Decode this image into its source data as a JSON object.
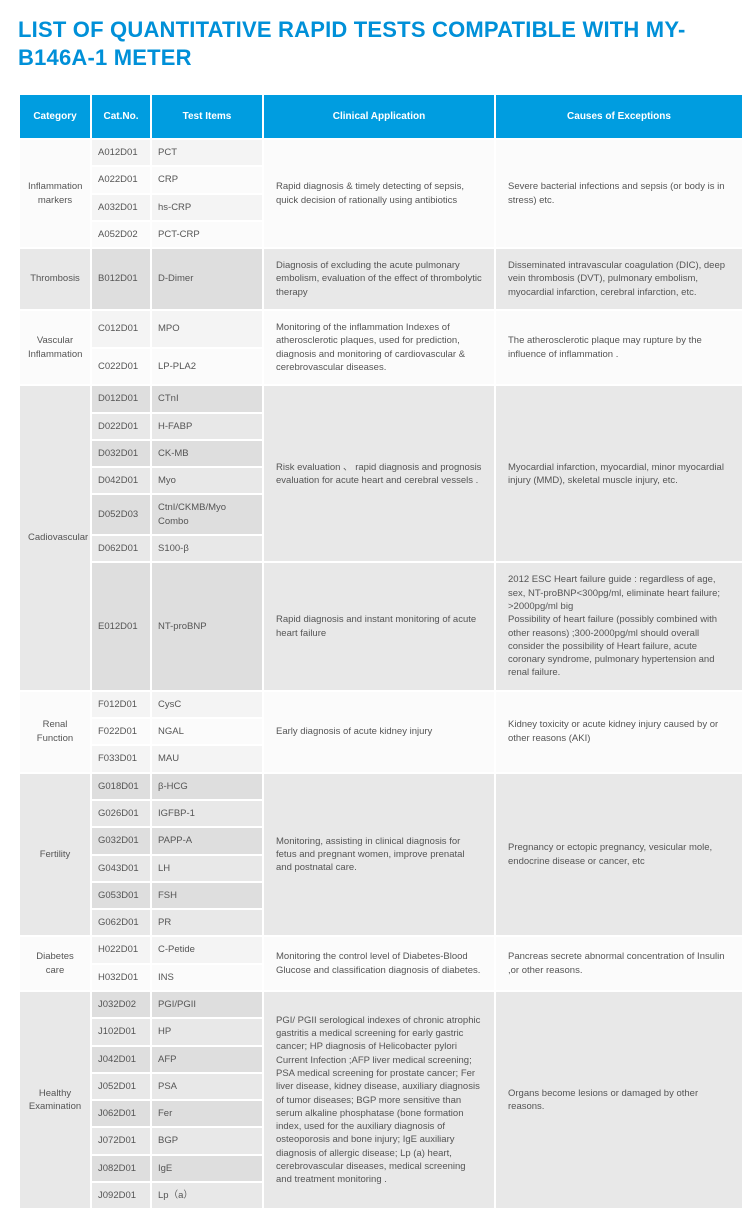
{
  "title": "LIST OF QUANTITATIVE RAPID TESTS COMPATIBLE WITH MY-B146A-1 METER",
  "colors": {
    "header_bg": "#009de0",
    "header_fg": "#ffffff",
    "title": "#0090d8",
    "light_a": "#f4f4f4",
    "light_b": "#fbfbfb",
    "dark_a": "#dedede",
    "dark_b": "#e8e8e8",
    "text": "#555555"
  },
  "headers": [
    "Category",
    "Cat.No.",
    "Test Items",
    "Clinical Application",
    "Causes of Exceptions"
  ],
  "groups": [
    {
      "category": "Inflammation markers",
      "shade": "light",
      "blocks": [
        {
          "application": "Rapid diagnosis & timely detecting of sepsis, quick decision of rationally using antibiotics",
          "cause": "Severe bacterial infections and sepsis (or body is in stress) etc.",
          "rows": [
            {
              "catno": "A012D01",
              "test": "PCT"
            },
            {
              "catno": "A022D01",
              "test": "CRP"
            },
            {
              "catno": "A032D01",
              "test": "hs-CRP"
            },
            {
              "catno": "A052D02",
              "test": "PCT-CRP"
            }
          ]
        }
      ]
    },
    {
      "category": "Thrombosis",
      "shade": "dark",
      "blocks": [
        {
          "application": "Diagnosis of excluding the acute pulmonary embolism, evaluation of the effect of thrombolytic therapy",
          "cause": "Disseminated intravascular coagulation (DIC), deep vein thrombosis (DVT), pulmonary embolism, myocardial infarction, cerebral infarction, etc.",
          "rows": [
            {
              "catno": "B012D01",
              "test": "D-Dimer"
            }
          ]
        }
      ]
    },
    {
      "category": "Vascular Inflammation",
      "shade": "light",
      "blocks": [
        {
          "application": "Monitoring of the inflammation Indexes of atherosclerotic plaques, used for prediction, diagnosis and monitoring of cardiovascular & cerebrovascular diseases.",
          "cause": "The atherosclerotic plaque may rupture by the influence of inflammation .",
          "rows": [
            {
              "catno": "C012D01",
              "test": "MPO"
            },
            {
              "catno": "C022D01",
              "test": "LP-PLA2"
            }
          ]
        }
      ]
    },
    {
      "category": "Cadiovascular",
      "shade": "dark",
      "blocks": [
        {
          "application": "Risk evaluation 、 rapid diagnosis and prognosis evaluation for acute heart and cerebral vessels .",
          "cause": "Myocardial infarction, myocardial, minor myocardial injury (MMD), skeletal muscle injury, etc.",
          "rows": [
            {
              "catno": "D012D01",
              "test": "CTnI"
            },
            {
              "catno": "D022D01",
              "test": "H-FABP"
            },
            {
              "catno": "D032D01",
              "test": "CK-MB"
            },
            {
              "catno": "D042D01",
              "test": "Myo"
            },
            {
              "catno": "D052D03",
              "test": "CtnI/CKMB/Myo Combo"
            },
            {
              "catno": "D062D01",
              "test": "S100-β"
            }
          ]
        },
        {
          "application": "Rapid diagnosis and instant monitoring of acute heart failure",
          "cause": "2012 ESC Heart failure guide : regardless of age, sex, NT-proBNP<300pg/ml, eliminate heart failure; >2000pg/ml big\nPossibility of heart failure (possibly combined with other reasons) ;300-2000pg/ml should overall consider the possibility of Heart failure, acute coronary syndrome, pulmonary hypertension and renal failure.",
          "rows": [
            {
              "catno": "E012D01",
              "test": "NT-proBNP"
            }
          ]
        }
      ]
    },
    {
      "category": "Renal Function",
      "shade": "light",
      "blocks": [
        {
          "application": "Early diagnosis of acute kidney injury",
          "cause": "Kidney toxicity or acute kidney injury caused by or other reasons (AKI)",
          "rows": [
            {
              "catno": "F012D01",
              "test": "CysC"
            },
            {
              "catno": "F022D01",
              "test": "NGAL"
            },
            {
              "catno": "F033D01",
              "test": "MAU"
            }
          ]
        }
      ]
    },
    {
      "category": "Fertility",
      "shade": "dark",
      "blocks": [
        {
          "application": "Monitoring, assisting in clinical diagnosis for fetus and pregnant women, improve prenatal and postnatal care.",
          "cause": "Pregnancy or ectopic pregnancy, vesicular mole, endocrine disease or cancer, etc",
          "rows": [
            {
              "catno": "G018D01",
              "test": "β-HCG"
            },
            {
              "catno": "G026D01",
              "test": "IGFBP-1"
            },
            {
              "catno": "G032D01",
              "test": "PAPP-A"
            },
            {
              "catno": "G043D01",
              "test": "LH"
            },
            {
              "catno": "G053D01",
              "test": "FSH"
            },
            {
              "catno": "G062D01",
              "test": "PR"
            }
          ]
        }
      ]
    },
    {
      "category": "Diabetes care",
      "shade": "light",
      "blocks": [
        {
          "application": "Monitoring the control level of Diabetes-Blood Glucose and classification diagnosis of diabetes.",
          "cause": "Pancreas secrete abnormal concentration of Insulin ,or other reasons.",
          "rows": [
            {
              "catno": "H022D01",
              "test": "C-Petide"
            },
            {
              "catno": "H032D01",
              "test": "INS"
            }
          ]
        }
      ]
    },
    {
      "category": "Healthy Examination",
      "shade": "dark",
      "blocks": [
        {
          "application": "PGI/ PGII  serological indexes of chronic atrophic gastritis  a medical screening for early gastric cancer; HP diagnosis of Helicobacter pylori Current Infection ;AFP liver medical screening; PSA medical screening for prostate cancer; Fer liver disease, kidney disease, auxiliary diagnosis of tumor diseases; BGP more sensitive than serum alkaline phosphatase (bone formation index, used for the auxiliary diagnosis of osteoporosis and bone injury; IgE auxiliary diagnosis of allergic disease; Lp (a) heart, cerebrovascular diseases, medical screening and treatment monitoring .",
          "cause": "Organs become lesions or damaged by other reasons.",
          "rows": [
            {
              "catno": "J032D02",
              "test": "PGI/PGII"
            },
            {
              "catno": "J102D01",
              "test": "HP"
            },
            {
              "catno": "J042D01",
              "test": "AFP"
            },
            {
              "catno": "J052D01",
              "test": "PSA"
            },
            {
              "catno": "J062D01",
              "test": "Fer"
            },
            {
              "catno": "J072D01",
              "test": "BGP"
            },
            {
              "catno": "J082D01",
              "test": "IgE"
            },
            {
              "catno": "J092D01",
              "test": "Lp（a）"
            }
          ]
        }
      ]
    }
  ]
}
